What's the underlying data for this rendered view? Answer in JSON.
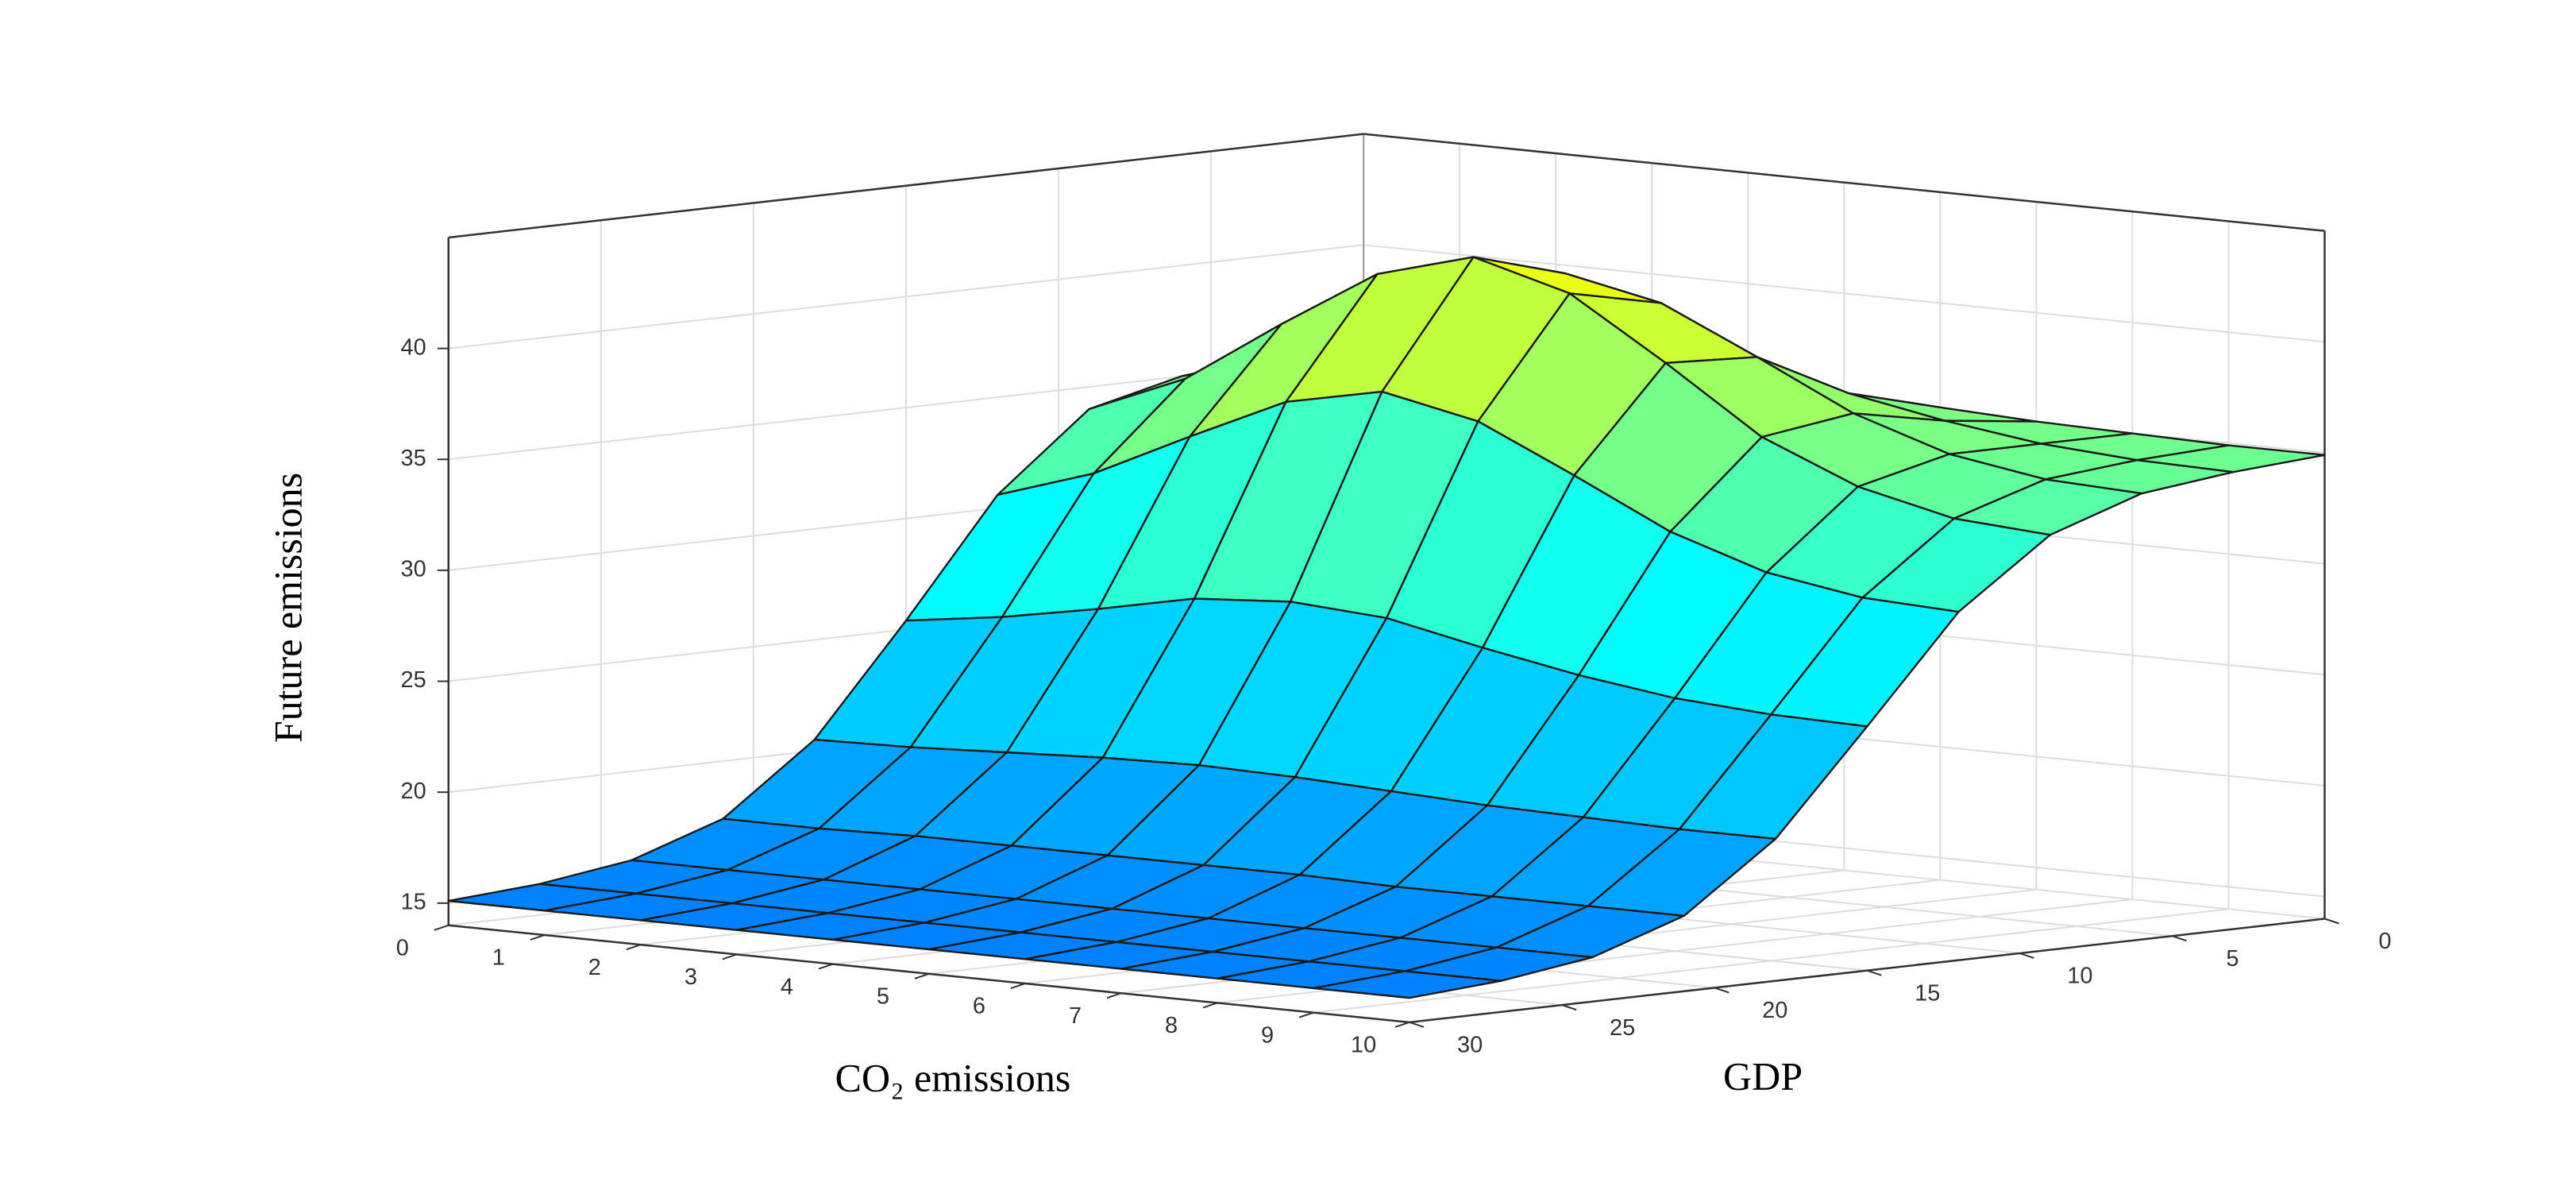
{
  "chart_data": {
    "type": "surface",
    "xlabel": "CO₂ emissions",
    "ylabel": "GDP",
    "zlabel": "Future emissions",
    "x": [
      0,
      1,
      2,
      3,
      4,
      5,
      6,
      7,
      8,
      9,
      10
    ],
    "y": [
      0,
      3,
      6,
      9,
      12,
      15,
      18,
      21,
      24,
      27,
      30
    ],
    "z": [
      [
        35.0,
        35.1,
        35.3,
        35.5,
        35.6,
        35.5,
        35.3,
        35.1,
        35.0,
        34.9,
        34.9
      ],
      [
        35.0,
        35.6,
        36.4,
        37.3,
        37.6,
        37.3,
        36.4,
        35.6,
        35.0,
        34.7,
        34.6
      ],
      [
        35.0,
        36.4,
        38.5,
        40.5,
        41.4,
        40.5,
        38.5,
        36.4,
        35.0,
        34.3,
        34.1
      ],
      [
        34.0,
        35.8,
        38.7,
        41.4,
        42.6,
        41.4,
        38.7,
        35.8,
        34.0,
        33.0,
        32.7
      ],
      [
        30.6,
        32.0,
        34.1,
        36.1,
        37.0,
        36.1,
        34.1,
        32.0,
        30.6,
        29.9,
        29.7
      ],
      [
        25.4,
        26.0,
        26.8,
        27.7,
        28.0,
        27.7,
        26.8,
        26.0,
        25.4,
        25.1,
        25.0
      ],
      [
        20.5,
        20.6,
        20.8,
        21.0,
        21.1,
        21.0,
        20.8,
        20.6,
        20.5,
        20.4,
        20.4
      ],
      [
        17.4,
        17.4,
        17.5,
        17.5,
        17.5,
        17.5,
        17.5,
        17.4,
        17.4,
        17.4,
        17.4
      ],
      [
        16.0,
        16.0,
        16.0,
        16.0,
        16.0,
        16.0,
        16.0,
        16.0,
        16.0,
        16.0,
        16.0
      ],
      [
        15.4,
        15.4,
        15.4,
        15.4,
        15.4,
        15.4,
        15.4,
        15.4,
        15.4,
        15.4,
        15.4
      ],
      [
        15.1,
        15.1,
        15.1,
        15.1,
        15.1,
        15.1,
        15.1,
        15.1,
        15.1,
        15.1,
        15.1
      ]
    ],
    "xlim": [
      0,
      10
    ],
    "ylim": [
      0,
      30
    ],
    "zlim": [
      14,
      45
    ],
    "xticks": [
      0,
      1,
      2,
      3,
      4,
      5,
      6,
      7,
      8,
      9,
      10
    ],
    "yticks": [
      0,
      5,
      10,
      15,
      20,
      25,
      30
    ],
    "zticks": [
      15,
      20,
      25,
      30,
      35,
      40
    ],
    "colormap": [
      "#0080ff",
      "#00ffff",
      "#ffff00"
    ],
    "grid": true
  }
}
